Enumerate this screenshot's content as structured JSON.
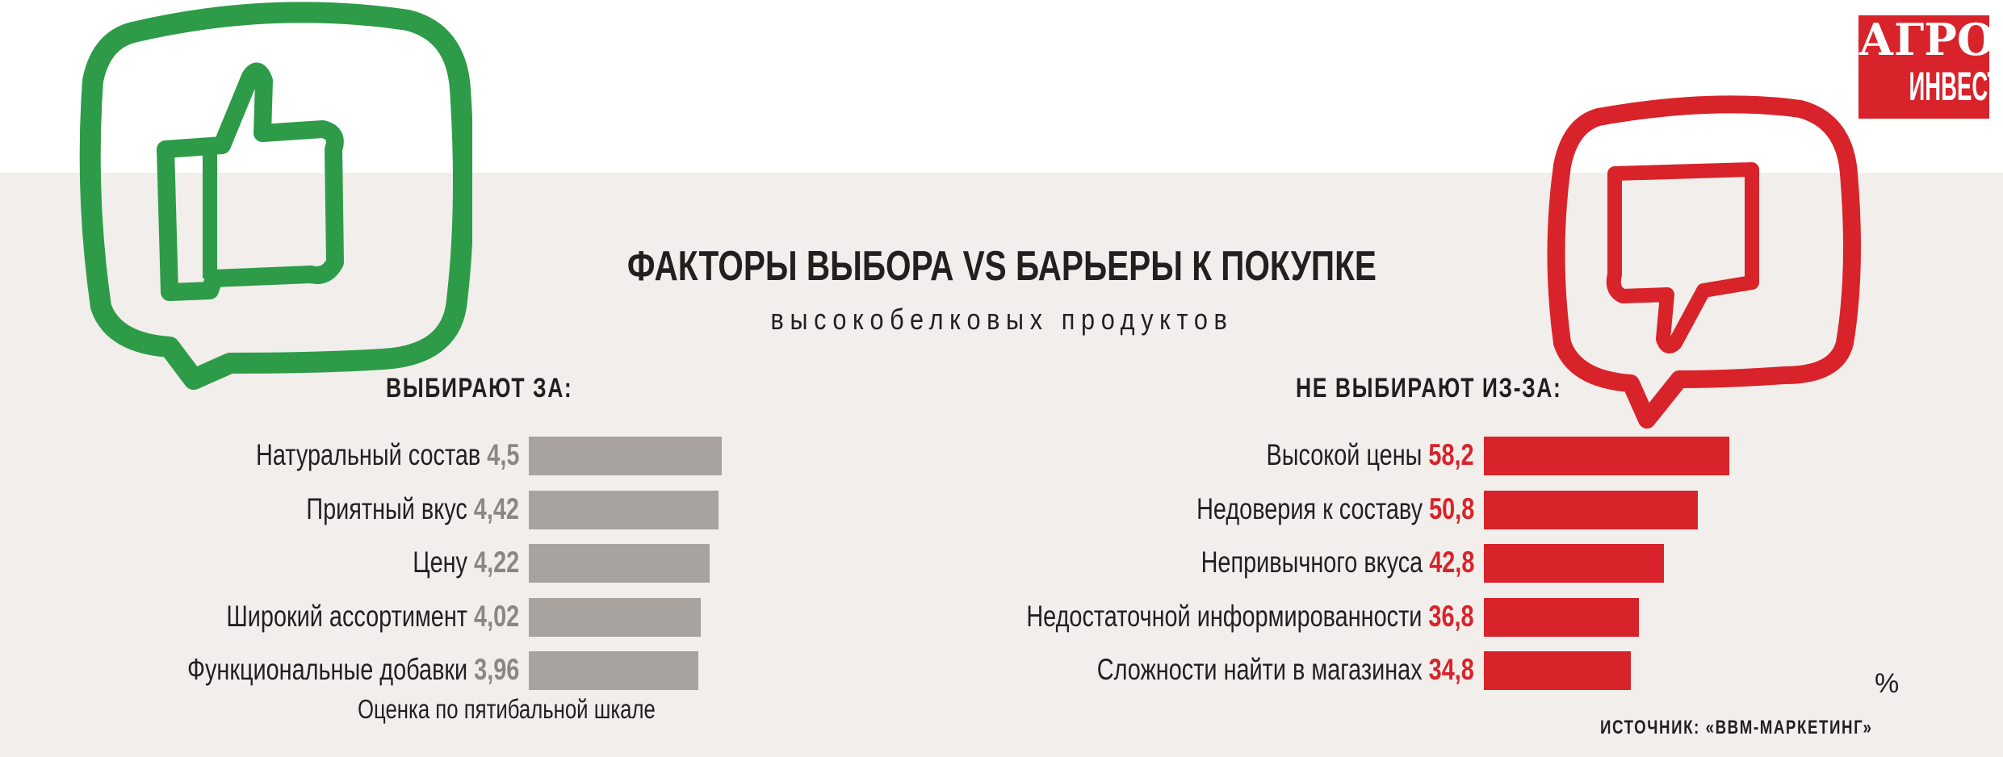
{
  "title": "ФАКТОРЫ ВЫБОРА VS БАРЬЕРЫ К ПОКУПКЕ",
  "subtitle": "высокобелковых продуктов",
  "logo": {
    "line1": "АГРО",
    "line2": "ИНВЕСТОР"
  },
  "colors": {
    "green": "#2e9b48",
    "red": "#d8232a",
    "gray": "#a8a39f",
    "background": "#f1eeeb"
  },
  "chart_data": [
    {
      "type": "bar",
      "orientation": "horizontal",
      "title": "ВЫБИРАЮТ ЗА:",
      "categories": [
        "Натуральный состав",
        "Приятный вкус",
        "Цену",
        "Широкий ассортимент",
        "Функциональные добавки"
      ],
      "values": [
        4.5,
        4.42,
        4.22,
        4.02,
        3.96
      ],
      "value_labels": [
        "4,5",
        "4,42",
        "4,22",
        "4,02",
        "3,96"
      ],
      "note": "Оценка по пятибальной шкале",
      "xlim": [
        0,
        5
      ],
      "grid": false
    },
    {
      "type": "bar",
      "orientation": "horizontal",
      "title": "НЕ ВЫБИРАЮТ ИЗ-ЗА:",
      "categories": [
        "Высокой цены",
        "Недоверия к составу",
        "Непривычного вкуса",
        "Недостаточной информированности",
        "Сложности найти в магазинах"
      ],
      "values": [
        58.2,
        50.8,
        42.8,
        36.8,
        34.8
      ],
      "value_labels": [
        "58,2",
        "50,8",
        "42,8",
        "36,8",
        "34,8"
      ],
      "unit": "%",
      "xlim": [
        0,
        60
      ],
      "grid": false
    }
  ],
  "source": "ИСТОЧНИК: «BBM-МАРКЕТИНГ»"
}
